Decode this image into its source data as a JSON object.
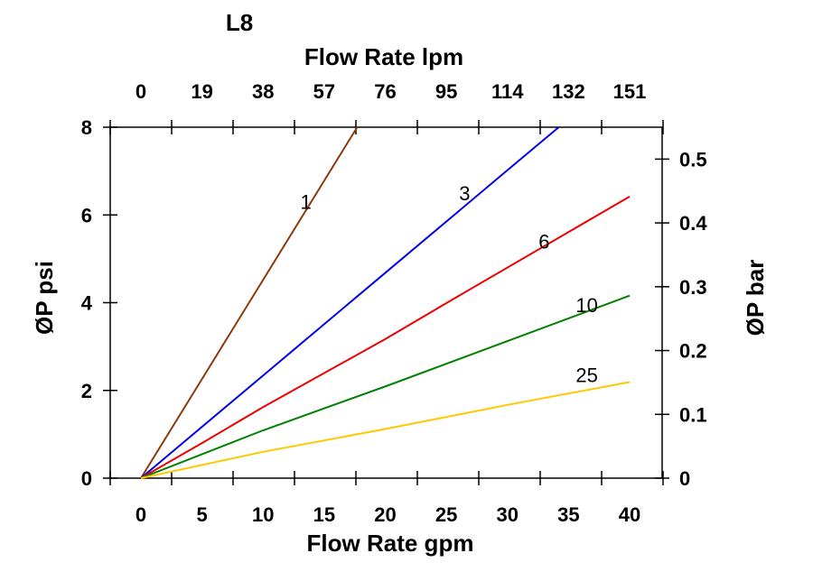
{
  "chart_data": {
    "type": "line",
    "title": "L8",
    "xlabel": "Flow Rate gpm",
    "x2label": "Flow Rate lpm",
    "ylabel": "ØP psi",
    "y2label": "ØP bar",
    "xlim": [
      0,
      40
    ],
    "ylim": [
      0,
      8
    ],
    "y2lim": [
      0,
      0.55
    ],
    "xticks": [
      "0",
      "5",
      "10",
      "15",
      "20",
      "25",
      "30",
      "35",
      "40"
    ],
    "x2ticks": [
      "0",
      "19",
      "38",
      "57",
      "76",
      "95",
      "114",
      "132",
      "151"
    ],
    "yticks": [
      "0",
      "2",
      "4",
      "6",
      "8"
    ],
    "y2ticks": [
      "0",
      "0.1",
      "0.2",
      "0.3",
      "0.4",
      "0.5"
    ],
    "grid": false,
    "legend": "inline labels",
    "series": [
      {
        "name": "1",
        "color": "#8B3A0F",
        "x": [
          0,
          17.7
        ],
        "y": [
          0,
          8
        ],
        "label_at": [
          13.5,
          6.3
        ]
      },
      {
        "name": "3",
        "color": "#0000EE",
        "x": [
          0,
          10,
          20,
          30,
          34.2
        ],
        "y": [
          0,
          2.34,
          4.68,
          7.02,
          8
        ],
        "label_at": [
          26.5,
          6.5
        ]
      },
      {
        "name": "6",
        "color": "#EE0000",
        "x": [
          0,
          5,
          10,
          20,
          25,
          40
        ],
        "y": [
          0,
          0.8,
          1.62,
          3.17,
          3.99,
          6.42
        ],
        "label_at": [
          33,
          5.4
        ]
      },
      {
        "name": "10",
        "color": "#008000",
        "x": [
          0,
          10,
          20,
          40
        ],
        "y": [
          0,
          1.09,
          2.09,
          4.16
        ],
        "label_at": [
          36.5,
          3.95
        ]
      },
      {
        "name": "25",
        "color": "#FFC800",
        "x": [
          0,
          10,
          20,
          30,
          40
        ],
        "y": [
          0,
          0.6,
          1.12,
          1.67,
          2.19
        ],
        "label_at": [
          36.5,
          2.35
        ]
      }
    ]
  }
}
